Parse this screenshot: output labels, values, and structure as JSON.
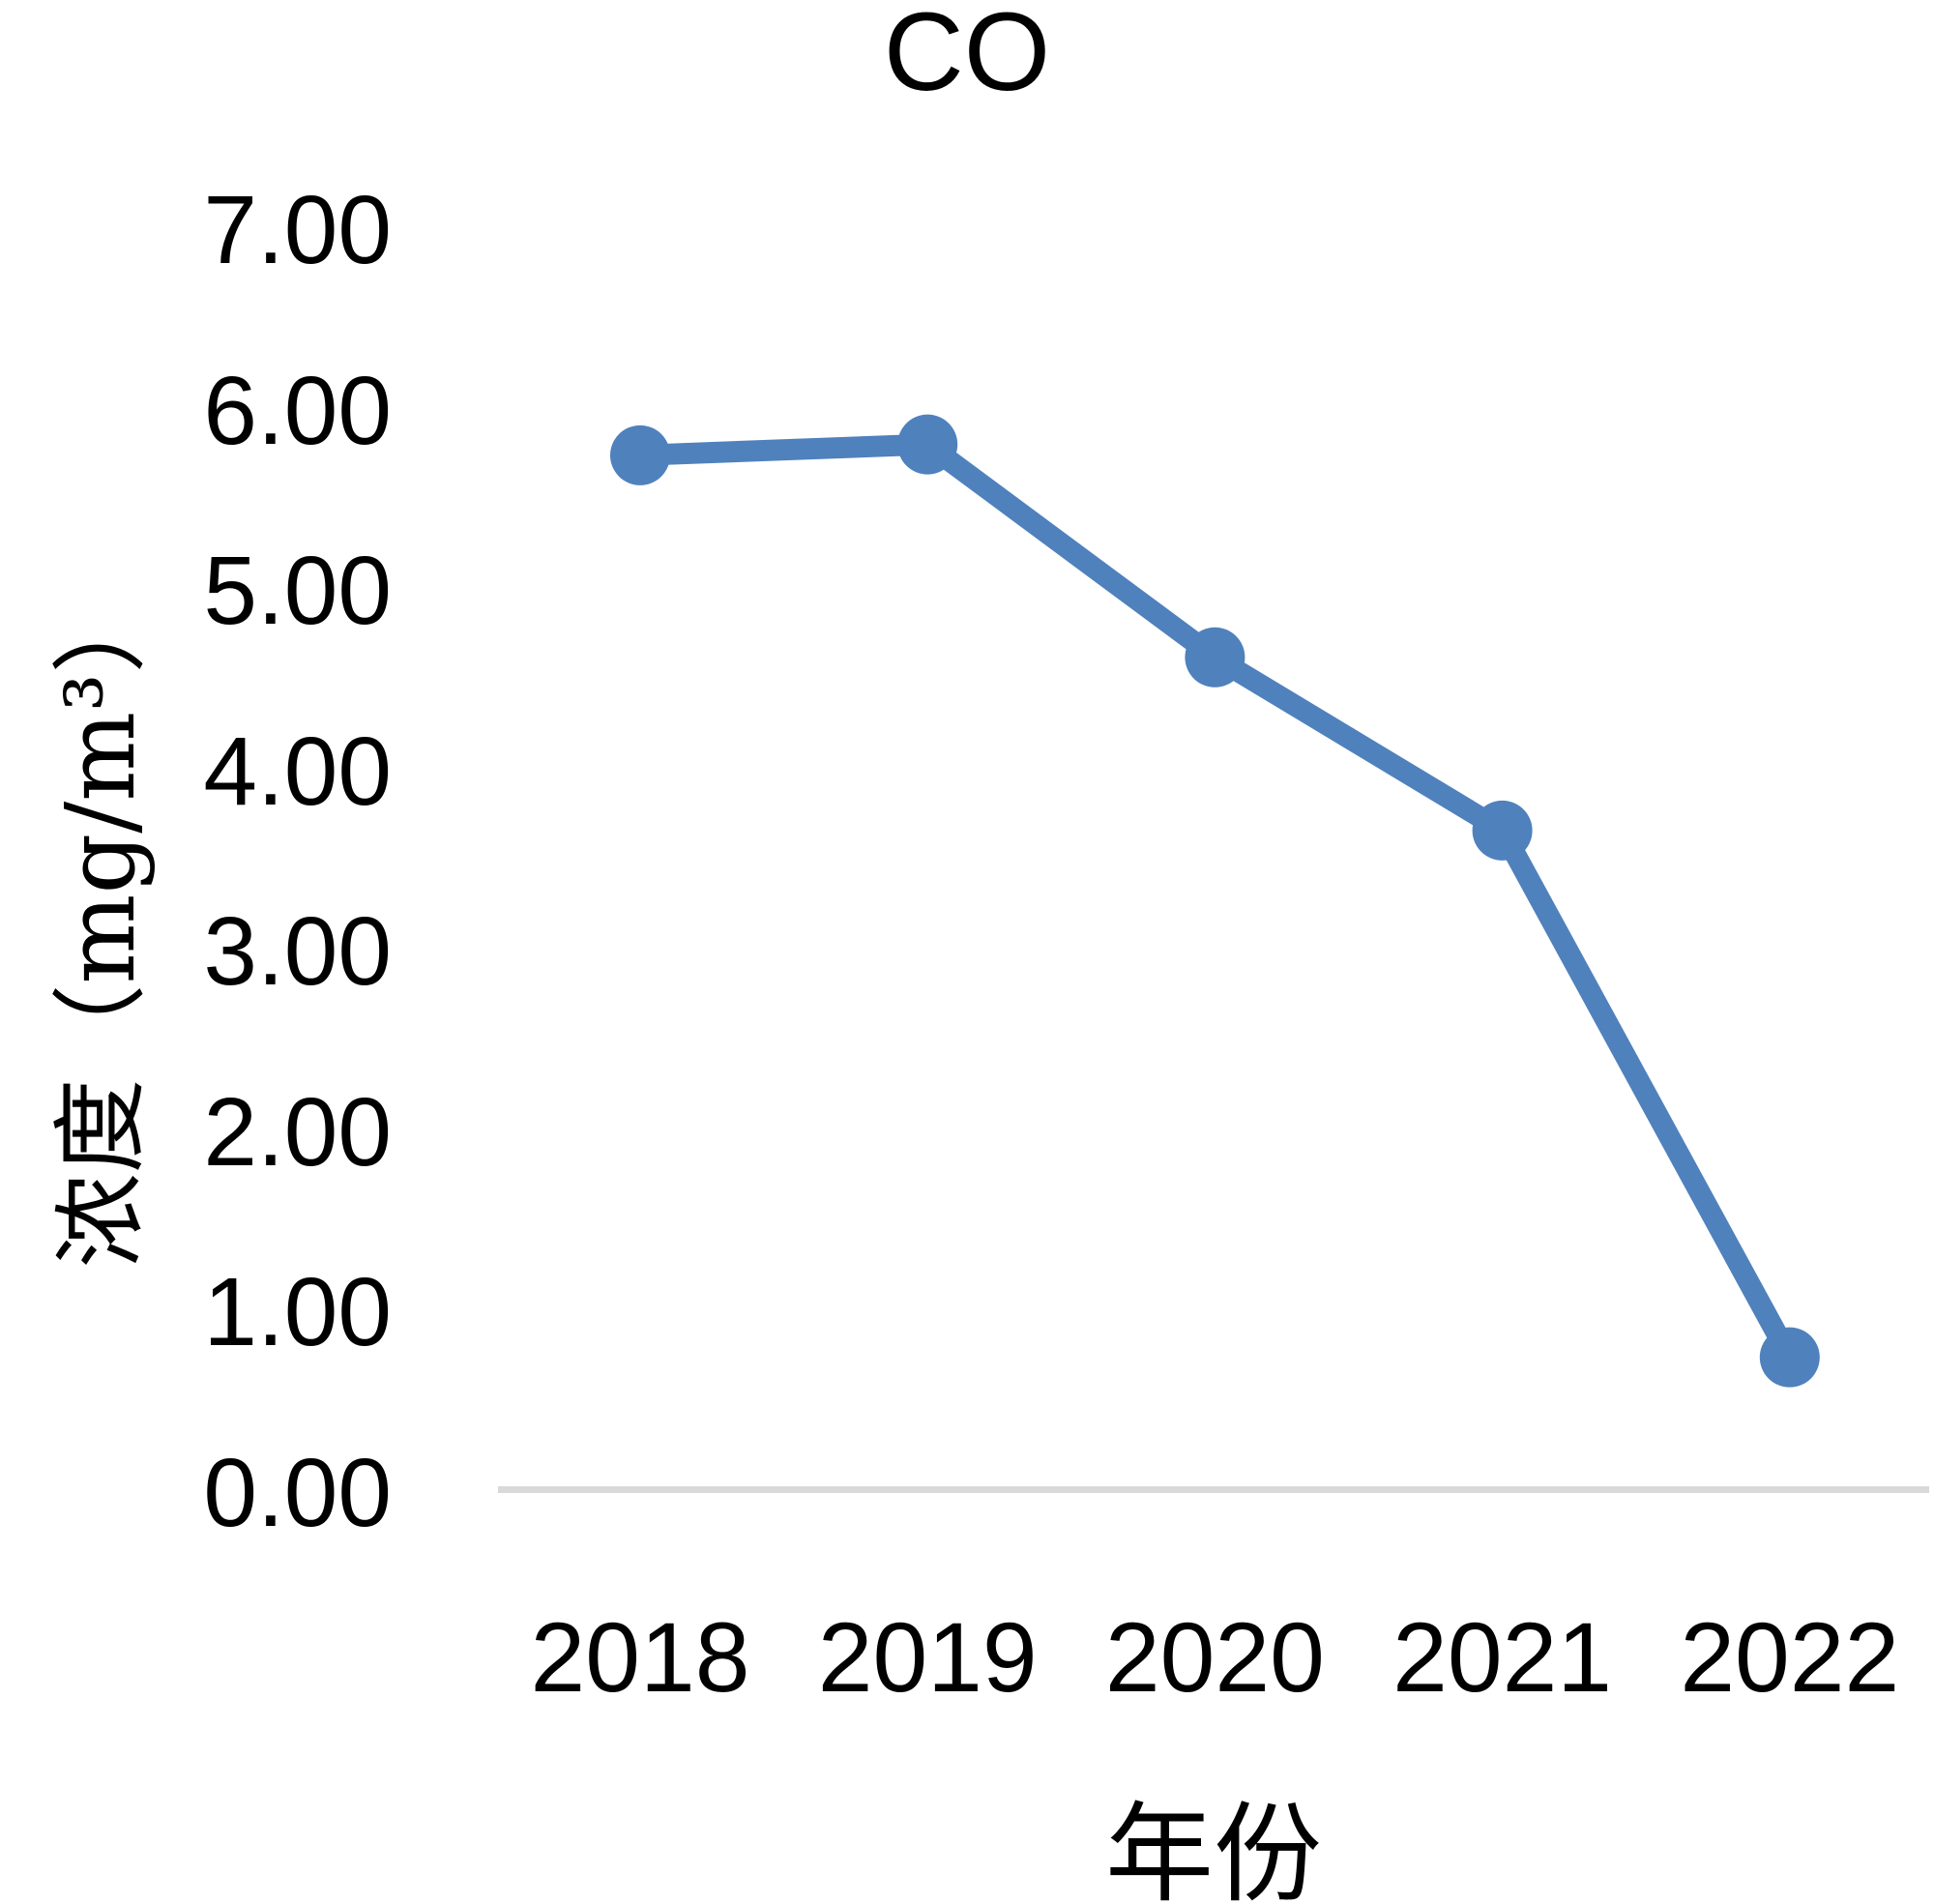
{
  "chart_data": {
    "type": "line",
    "title": "CO",
    "categories": [
      "2018",
      "2019",
      "2020",
      "2021",
      "2022"
    ],
    "series": [
      {
        "name": "CO",
        "values": [
          5.72,
          5.78,
          4.6,
          3.64,
          0.72
        ]
      }
    ],
    "xlabel": "年份",
    "ylabel": "浓度（mg/m³）",
    "ylim": [
      0,
      7
    ],
    "y_tick_labels": [
      "0.00",
      "1.00",
      "2.00",
      "3.00",
      "4.00",
      "5.00",
      "6.00",
      "7.00"
    ],
    "grid": false,
    "legend": "none",
    "marker": "circle",
    "colors": {
      "line": "#4F81BD",
      "marker": "#4F81BD",
      "axis_line": "#D9D9D9",
      "text": "#000000"
    }
  }
}
